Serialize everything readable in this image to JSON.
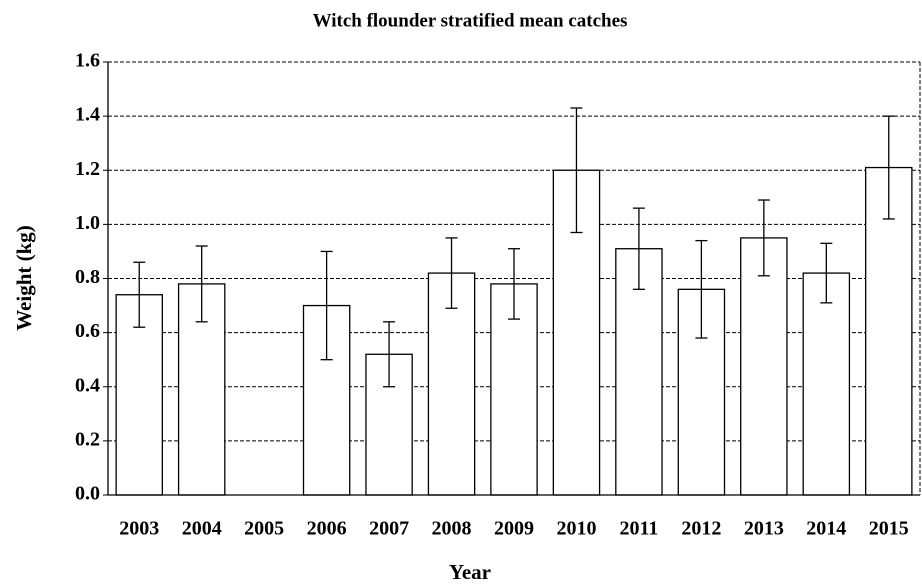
{
  "chart_data": {
    "type": "bar",
    "title": "Witch flounder stratified mean catches",
    "x_label": "Year",
    "y_label": "Weight (kg)",
    "categories": [
      "2003",
      "2004",
      "2005",
      "2006",
      "2007",
      "2008",
      "2009",
      "2010",
      "2011",
      "2012",
      "2013",
      "2014",
      "2015"
    ],
    "values": [
      0.74,
      0.78,
      null,
      0.7,
      0.52,
      0.82,
      0.78,
      1.2,
      0.91,
      0.76,
      0.95,
      0.82,
      1.21
    ],
    "errors": [
      0.12,
      0.14,
      null,
      0.2,
      0.12,
      0.13,
      0.13,
      0.23,
      0.15,
      0.18,
      0.14,
      0.11,
      0.19
    ],
    "color": "#ffffff",
    "ylim": [
      0,
      1.6
    ],
    "yticks": [
      {
        "value": 0,
        "label": "0.0"
      },
      0.2,
      0.4,
      0.6,
      0.8,
      {
        "value": 1,
        "label": "1.0"
      },
      1.2,
      1.4,
      1.6
    ],
    "grid": true
  }
}
